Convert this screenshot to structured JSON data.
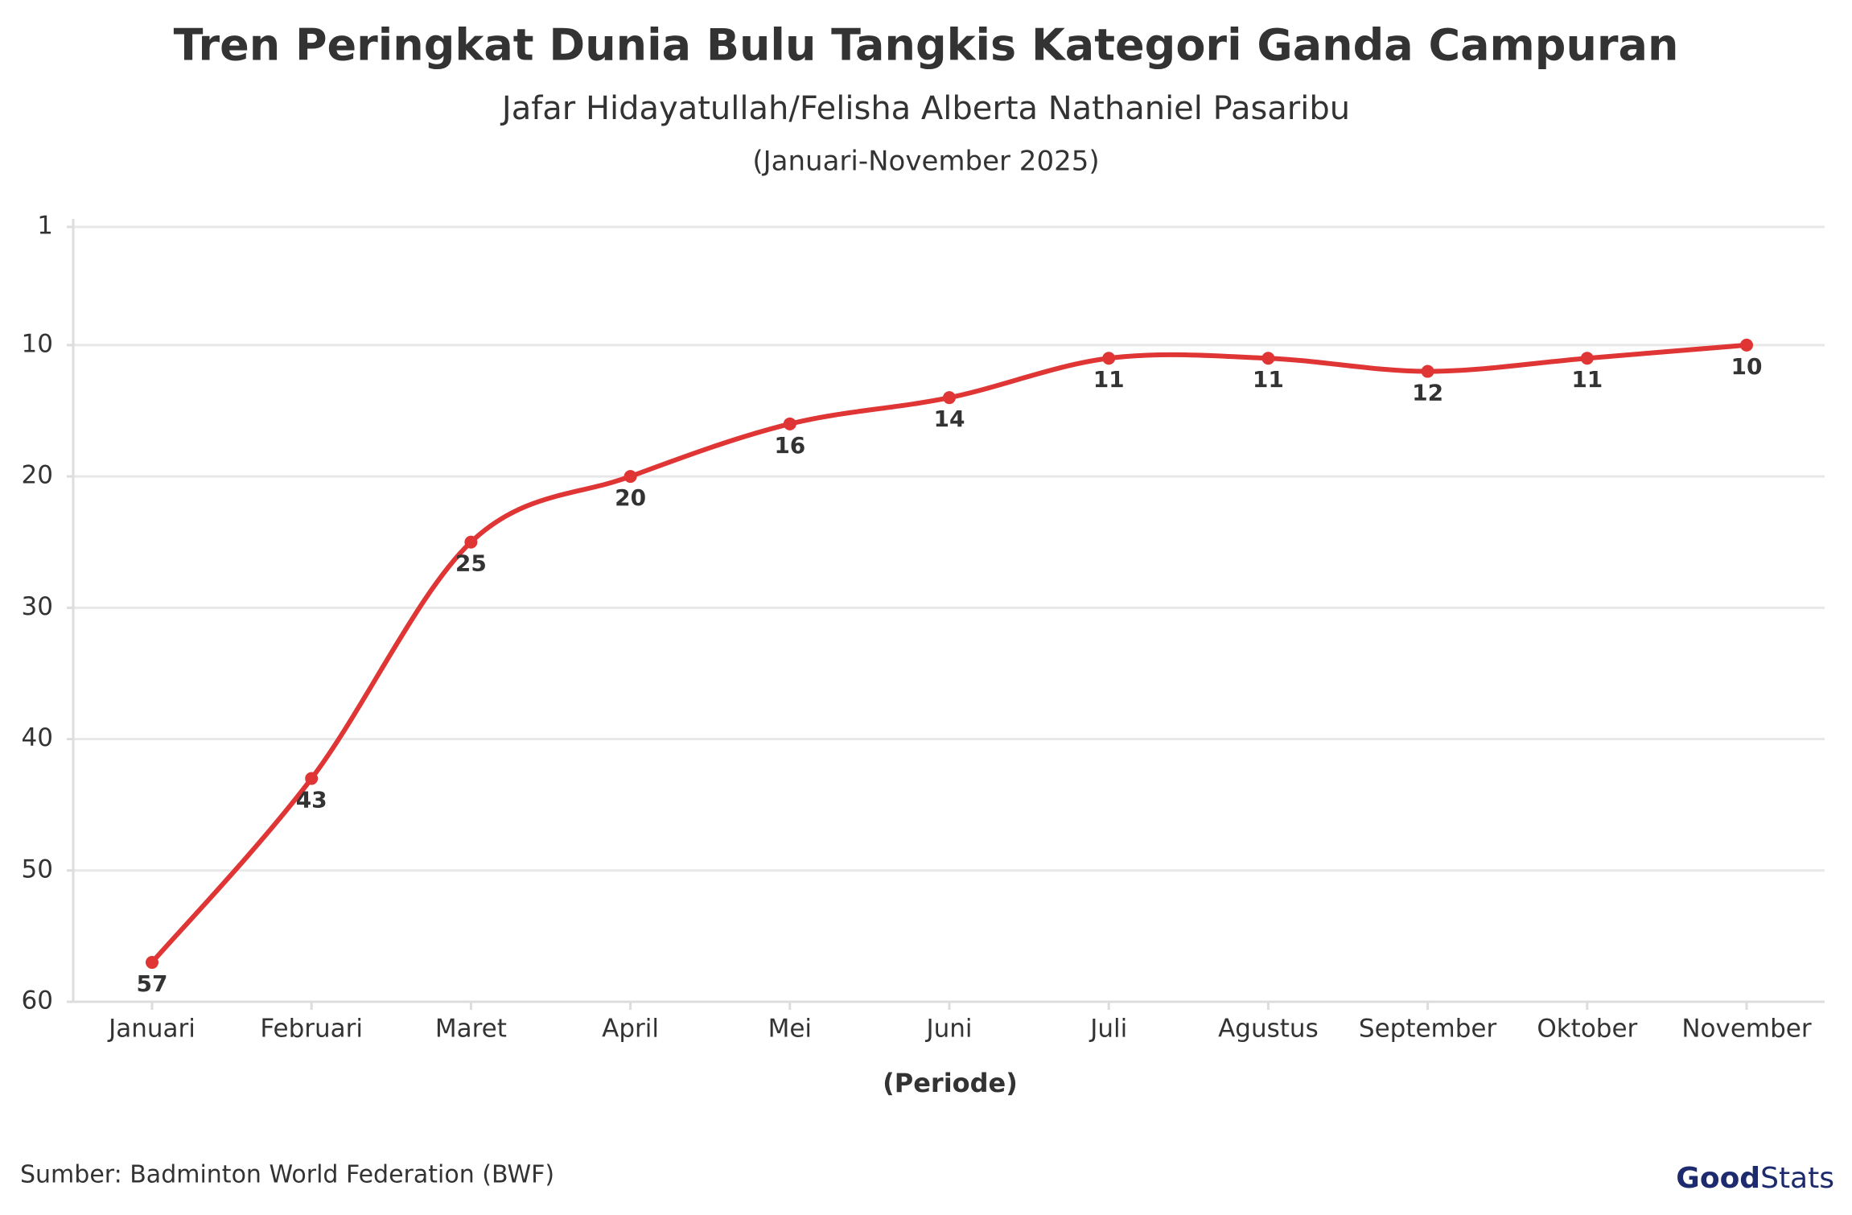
{
  "chart_data": {
    "type": "line",
    "title": "Tren Peringkat Dunia Bulu Tangkis Kategori Ganda Campuran",
    "subtitle": "Jafar Hidayatullah/Felisha Alberta Nathaniel Pasaribu",
    "period": "(Januari-November 2025)",
    "x_label": "(Periode)",
    "source": "Sumber: Badminton World Federation (BWF)",
    "logo": {
      "bold": "Good",
      "light": "Stats"
    },
    "categories": [
      "Januari",
      "Februari",
      "Maret",
      "April",
      "Mei",
      "Juni",
      "Juli",
      "Agustus",
      "September",
      "Oktober",
      "November"
    ],
    "series": [
      {
        "name": "Peringkat",
        "color": "#e03535",
        "values": [
          57,
          43,
          25,
          20,
          16,
          14,
          11,
          11,
          12,
          11,
          10
        ]
      }
    ],
    "ylim": [
      1,
      60
    ],
    "yticks": [
      1,
      10,
      20,
      30,
      40,
      50,
      60
    ],
    "y_inverted": true,
    "grid": true,
    "smooth": true
  }
}
